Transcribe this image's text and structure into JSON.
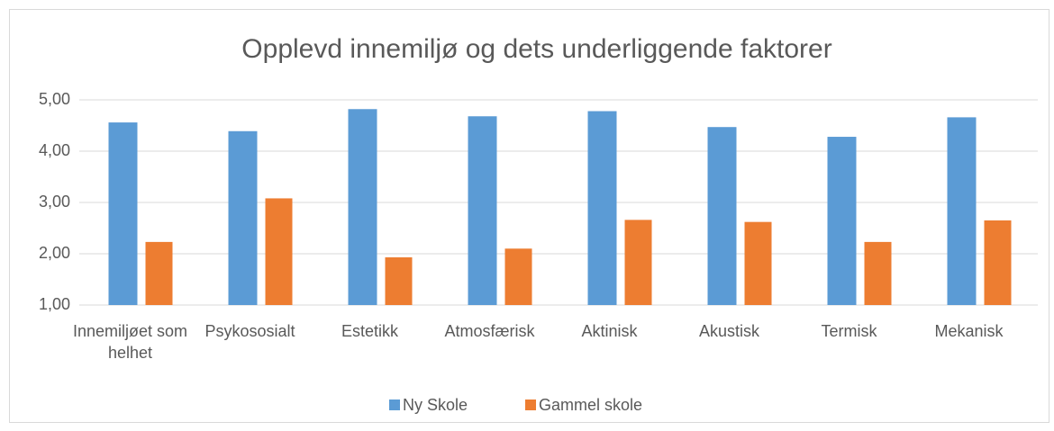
{
  "chart_data": {
    "type": "bar",
    "title": "Opplevd innemiljø og dets underliggende faktorer",
    "categories": [
      "Innemiljøet som helhet",
      "Psykososialt",
      "Estetikk",
      "Atmosfærisk",
      "Aktinisk",
      "Akustisk",
      "Termisk",
      "Mekanisk"
    ],
    "series": [
      {
        "name": "Ny Skole",
        "color": "#5b9bd5",
        "values": [
          4.56,
          4.39,
          4.82,
          4.68,
          4.78,
          4.47,
          4.28,
          4.66
        ]
      },
      {
        "name": "Gammel skole",
        "color": "#ed7d31",
        "values": [
          2.23,
          3.08,
          1.93,
          2.1,
          2.66,
          2.62,
          2.23,
          2.65
        ]
      }
    ],
    "ylim": [
      1,
      5
    ],
    "yticks": [
      {
        "value": 1,
        "label": "1,00"
      },
      {
        "value": 2,
        "label": "2,00"
      },
      {
        "value": 3,
        "label": "3,00"
      },
      {
        "value": 4,
        "label": "4,00"
      },
      {
        "value": 5,
        "label": "5,00"
      }
    ],
    "grid": true,
    "legend": "bottom"
  }
}
